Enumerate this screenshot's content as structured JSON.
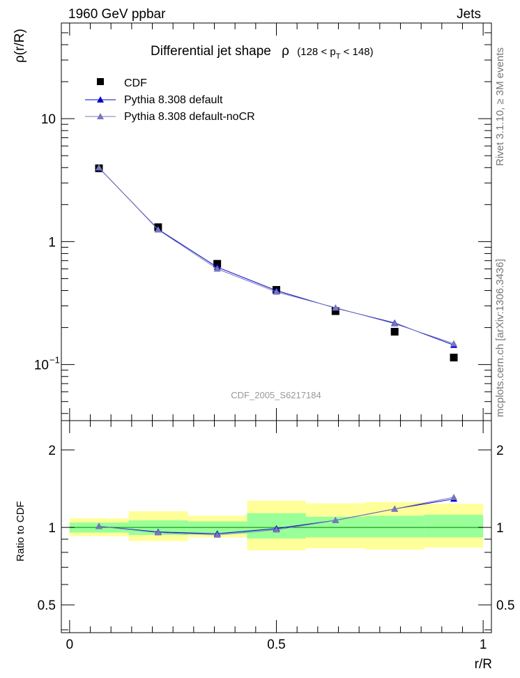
{
  "header": {
    "left": "1960 GeV ppbar",
    "right": "Jets"
  },
  "side_labels": {
    "rivet": "Rivet 3.1.10, ≥ 3M events",
    "mcplots": "mcplots.cern.ch [arXiv:1306.3436]"
  },
  "watermark": "CDF_2005_S6217184",
  "chart_data": [
    {
      "type": "scatter",
      "title": "Differential jet shape  ρ (128 < p_T < 148)",
      "title_parts": {
        "main": "Differential jet shape",
        "rho": "ρ",
        "range_open": "(128 < p",
        "sub": "T",
        "range_close": " < 148)"
      },
      "ylabel": "ρ(r/R)",
      "y_scale": "log",
      "xlim": [
        -0.02,
        1.02
      ],
      "ylim": [
        0.035,
        60
      ],
      "y_ticks": [
        {
          "value": 10,
          "label": "10"
        },
        {
          "value": 1,
          "label": "1"
        },
        {
          "value": 0.1,
          "label": "10",
          "exp": "−1"
        }
      ],
      "legend_position": "top-left",
      "series": [
        {
          "name": "CDF",
          "marker": "square",
          "color": "#000000",
          "x": [
            0.071,
            0.214,
            0.357,
            0.5,
            0.643,
            0.786,
            0.929
          ],
          "y": [
            3.95,
            1.31,
            0.66,
            0.405,
            0.272,
            0.185,
            0.114
          ]
        },
        {
          "name": "Pythia 8.308 default",
          "marker": "triangle",
          "color": "#0000cc",
          "x": [
            0.071,
            0.214,
            0.357,
            0.5,
            0.643,
            0.786,
            0.929
          ],
          "y": [
            3.98,
            1.26,
            0.62,
            0.4,
            0.288,
            0.218,
            0.144
          ]
        },
        {
          "name": "Pythia 8.308 default-noCR",
          "marker": "triangle",
          "color": "#7777bb",
          "x": [
            0.071,
            0.214,
            0.357,
            0.5,
            0.643,
            0.786,
            0.929
          ],
          "y": [
            4.0,
            1.25,
            0.6,
            0.39,
            0.29,
            0.215,
            0.148
          ]
        }
      ]
    },
    {
      "type": "scatter",
      "ylabel": "Ratio to CDF",
      "xlabel": "r/R",
      "y_scale": "log",
      "xlim": [
        -0.02,
        1.02
      ],
      "ylim": [
        0.39,
        2.6
      ],
      "x_ticks": [
        {
          "value": 0,
          "label": "0"
        },
        {
          "value": 0.5,
          "label": "0.5"
        },
        {
          "value": 1,
          "label": "1"
        }
      ],
      "y_ticks": [
        {
          "value": 2,
          "label": "2"
        },
        {
          "value": 1,
          "label": "1"
        },
        {
          "value": 0.5,
          "label": "0.5"
        }
      ],
      "bands": [
        {
          "x0": 0.0,
          "x1": 0.143,
          "stat": [
            0.955,
            1.045
          ],
          "total": [
            0.925,
            1.085
          ]
        },
        {
          "x0": 0.143,
          "x1": 0.286,
          "stat": [
            0.935,
            1.065
          ],
          "total": [
            0.885,
            1.155
          ]
        },
        {
          "x0": 0.286,
          "x1": 0.429,
          "stat": [
            0.945,
            1.055
          ],
          "total": [
            0.915,
            1.11
          ]
        },
        {
          "x0": 0.429,
          "x1": 0.571,
          "stat": [
            0.905,
            1.135
          ],
          "total": [
            0.815,
            1.27
          ]
        },
        {
          "x0": 0.571,
          "x1": 0.714,
          "stat": [
            0.915,
            1.1
          ],
          "total": [
            0.83,
            1.24
          ]
        },
        {
          "x0": 0.714,
          "x1": 0.857,
          "stat": [
            0.915,
            1.11
          ],
          "total": [
            0.82,
            1.255
          ]
        },
        {
          "x0": 0.857,
          "x1": 1.0,
          "stat": [
            0.915,
            1.12
          ],
          "total": [
            0.835,
            1.235
          ]
        }
      ],
      "series": [
        {
          "name": "Pythia 8.308 default",
          "marker": "triangle",
          "color": "#0000cc",
          "x": [
            0.071,
            0.214,
            0.357,
            0.5,
            0.643,
            0.786,
            0.929
          ],
          "y": [
            1.01,
            0.96,
            0.945,
            0.99,
            1.065,
            1.18,
            1.29
          ]
        },
        {
          "name": "Pythia 8.308 default-noCR",
          "marker": "triangle",
          "color": "#7777bb",
          "x": [
            0.071,
            0.214,
            0.357,
            0.5,
            0.643,
            0.786,
            0.929
          ],
          "y": [
            1.01,
            0.955,
            0.935,
            0.98,
            1.065,
            1.18,
            1.31
          ]
        }
      ],
      "colors": {
        "stat_band": "#99ff99",
        "total_band": "#ffff99",
        "reference_line": "#008800"
      }
    }
  ]
}
